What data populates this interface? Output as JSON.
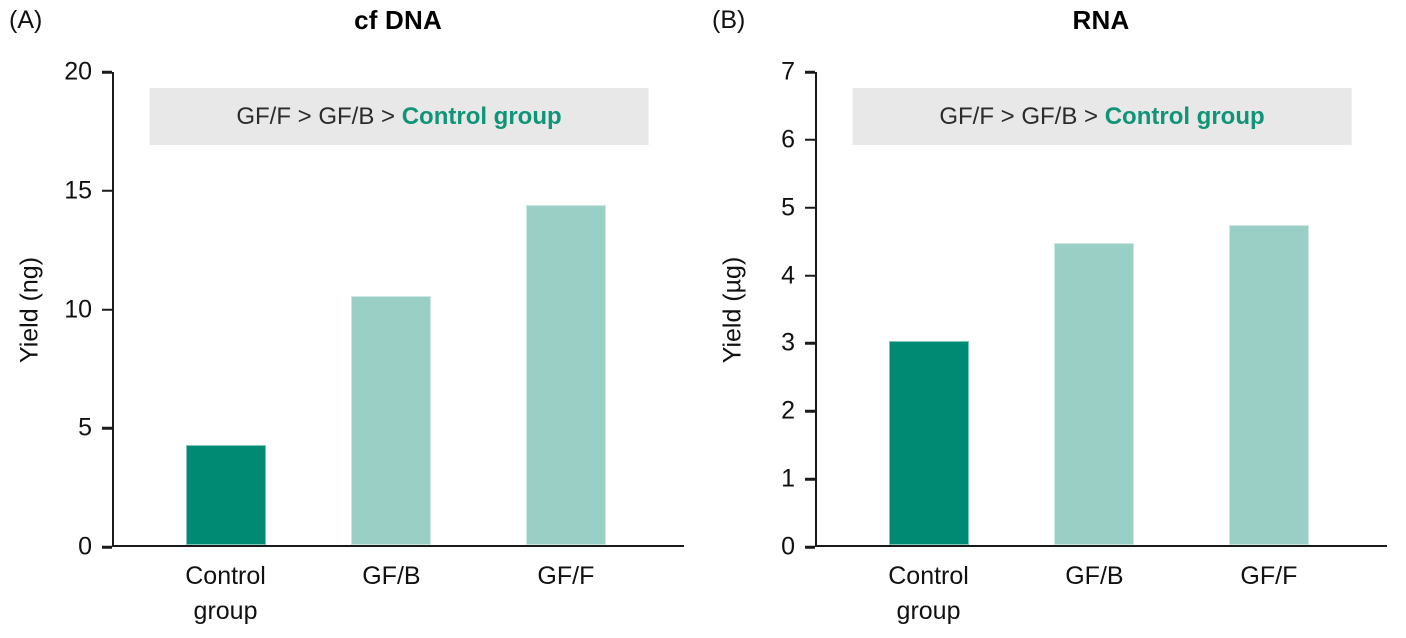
{
  "chart_data": [
    {
      "type": "bar",
      "panel_label": "(A)",
      "title": "cf DNA",
      "categories": [
        "Control group",
        "GF/B",
        "GF/F"
      ],
      "values": [
        4.2,
        10.5,
        14.3
      ],
      "xlabel": "",
      "ylabel": "Yield (ng)",
      "ylim": [
        0,
        20
      ],
      "yticks": [
        0,
        5,
        10,
        15,
        20
      ],
      "grid": false,
      "legend": "none",
      "annotation": {
        "prefix": "GF/F > GF/B > ",
        "highlight": "Control group"
      },
      "bar_colors": [
        "#008A73",
        "#9ACFC6",
        "#9ACFC6"
      ]
    },
    {
      "type": "bar",
      "panel_label": "(B)",
      "title": "RNA",
      "categories": [
        "Control group",
        "GF/B",
        "GF/F"
      ],
      "values": [
        3.0,
        4.45,
        4.72
      ],
      "xlabel": "",
      "ylabel": "Yield (µg)",
      "ylim": [
        0,
        7
      ],
      "yticks": [
        0,
        1,
        2,
        3,
        4,
        5,
        6,
        7
      ],
      "grid": false,
      "legend": "none",
      "annotation": {
        "prefix": "GF/F > GF/B > ",
        "highlight": "Control group"
      },
      "bar_colors": [
        "#008A73",
        "#9ACFC6",
        "#9ACFC6"
      ]
    }
  ],
  "colors": {
    "control_bar": "#008A73",
    "treatment_bar": "#9ACFC6",
    "highlight_text": "#0F9478",
    "annotation_bg": "#E8E8E8",
    "axis": "#1A1A1A",
    "text": "#111111"
  }
}
